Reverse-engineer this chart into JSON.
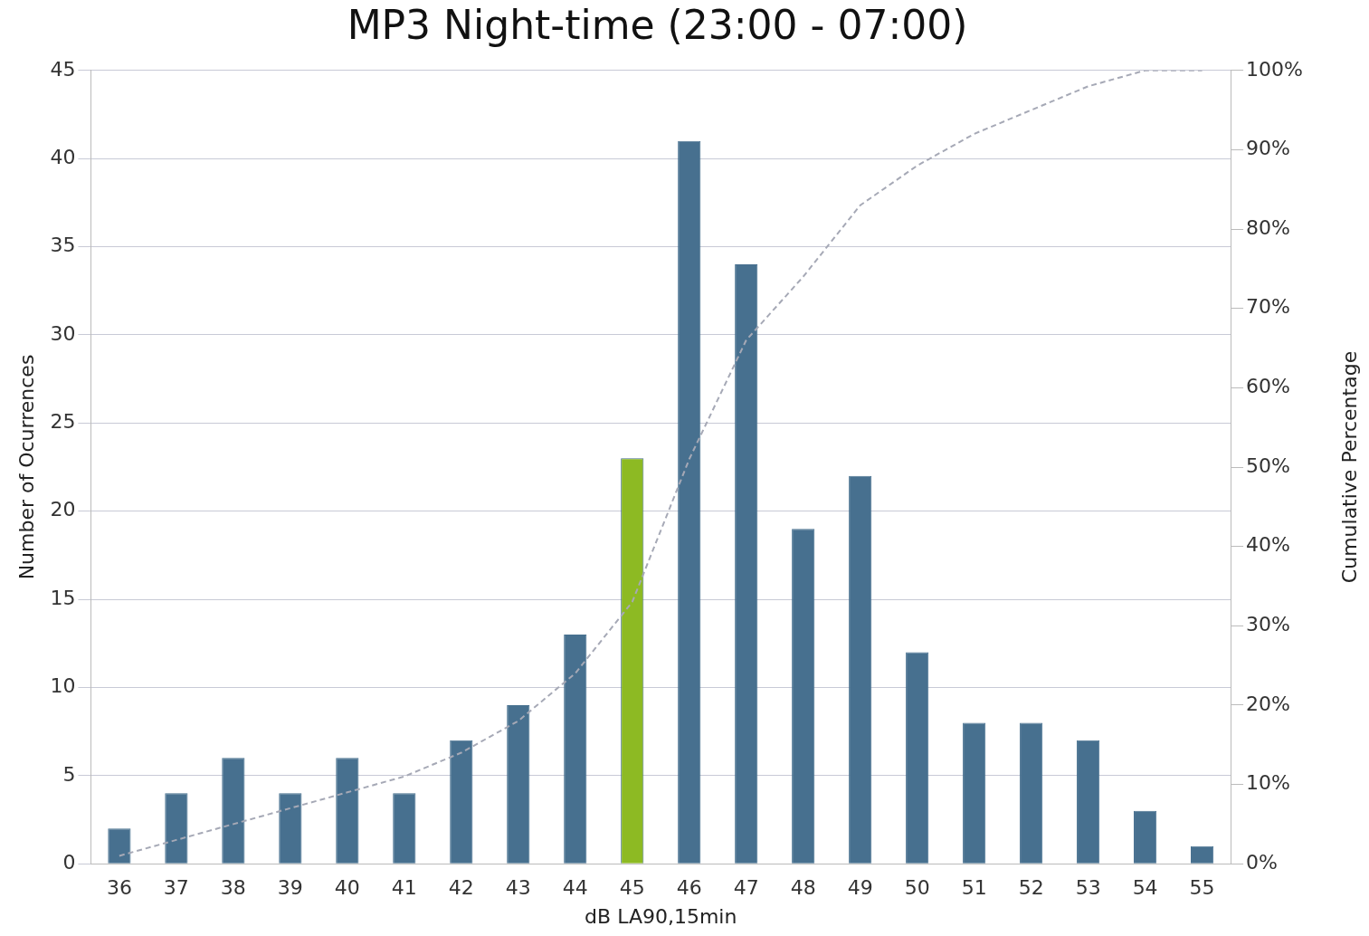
{
  "chart_data": {
    "type": "bar",
    "title": "MP3 Night-time (23:00 - 07:00)",
    "xlabel": "dB LA90,15min",
    "ylabel": "Number of Ocurrences",
    "y2label": "Cumulative Percentage",
    "categories": [
      "36",
      "37",
      "38",
      "39",
      "40",
      "41",
      "42",
      "43",
      "44",
      "45",
      "46",
      "47",
      "48",
      "49",
      "50",
      "51",
      "52",
      "53",
      "54",
      "55"
    ],
    "series": [
      {
        "type": "bar",
        "color": "#47708f",
        "colors": [
          "#47708f",
          "#47708f",
          "#47708f",
          "#47708f",
          "#47708f",
          "#47708f",
          "#47708f",
          "#47708f",
          "#47708f",
          "#8dba23",
          "#47708f",
          "#47708f",
          "#47708f",
          "#47708f",
          "#47708f",
          "#47708f",
          "#47708f",
          "#47708f",
          "#47708f",
          "#47708f"
        ],
        "values": [
          2,
          4,
          6,
          4,
          6,
          4,
          7,
          9,
          13,
          23,
          41,
          34,
          19,
          22,
          12,
          8,
          8,
          7,
          3,
          1
        ]
      },
      {
        "type": "line",
        "axis": "y2",
        "color": "#a6a9b6",
        "line_style": "dashed",
        "marker": "none",
        "values": [
          1,
          3,
          5,
          7,
          9,
          11,
          14,
          18,
          24,
          33,
          51,
          66,
          74,
          83,
          88,
          92,
          95,
          98,
          100,
          100
        ]
      }
    ],
    "ylim": [
      0,
      45
    ],
    "yticks": [
      0,
      5,
      10,
      15,
      20,
      25,
      30,
      35,
      40,
      45
    ],
    "y2lim": [
      0,
      100
    ],
    "y2ticks": [
      {
        "value": 0,
        "label": "0%"
      },
      {
        "value": 10,
        "label": "10%"
      },
      {
        "value": 20,
        "label": "20%"
      },
      {
        "value": 30,
        "label": "30%"
      },
      {
        "value": 40,
        "label": "40%"
      },
      {
        "value": 50,
        "label": "50%"
      },
      {
        "value": 60,
        "label": "60%"
      },
      {
        "value": 70,
        "label": "70%"
      },
      {
        "value": 80,
        "label": "80%"
      },
      {
        "value": 90,
        "label": "90%"
      },
      {
        "value": 100,
        "label": "100%"
      }
    ],
    "grid": "y",
    "legend": false
  }
}
